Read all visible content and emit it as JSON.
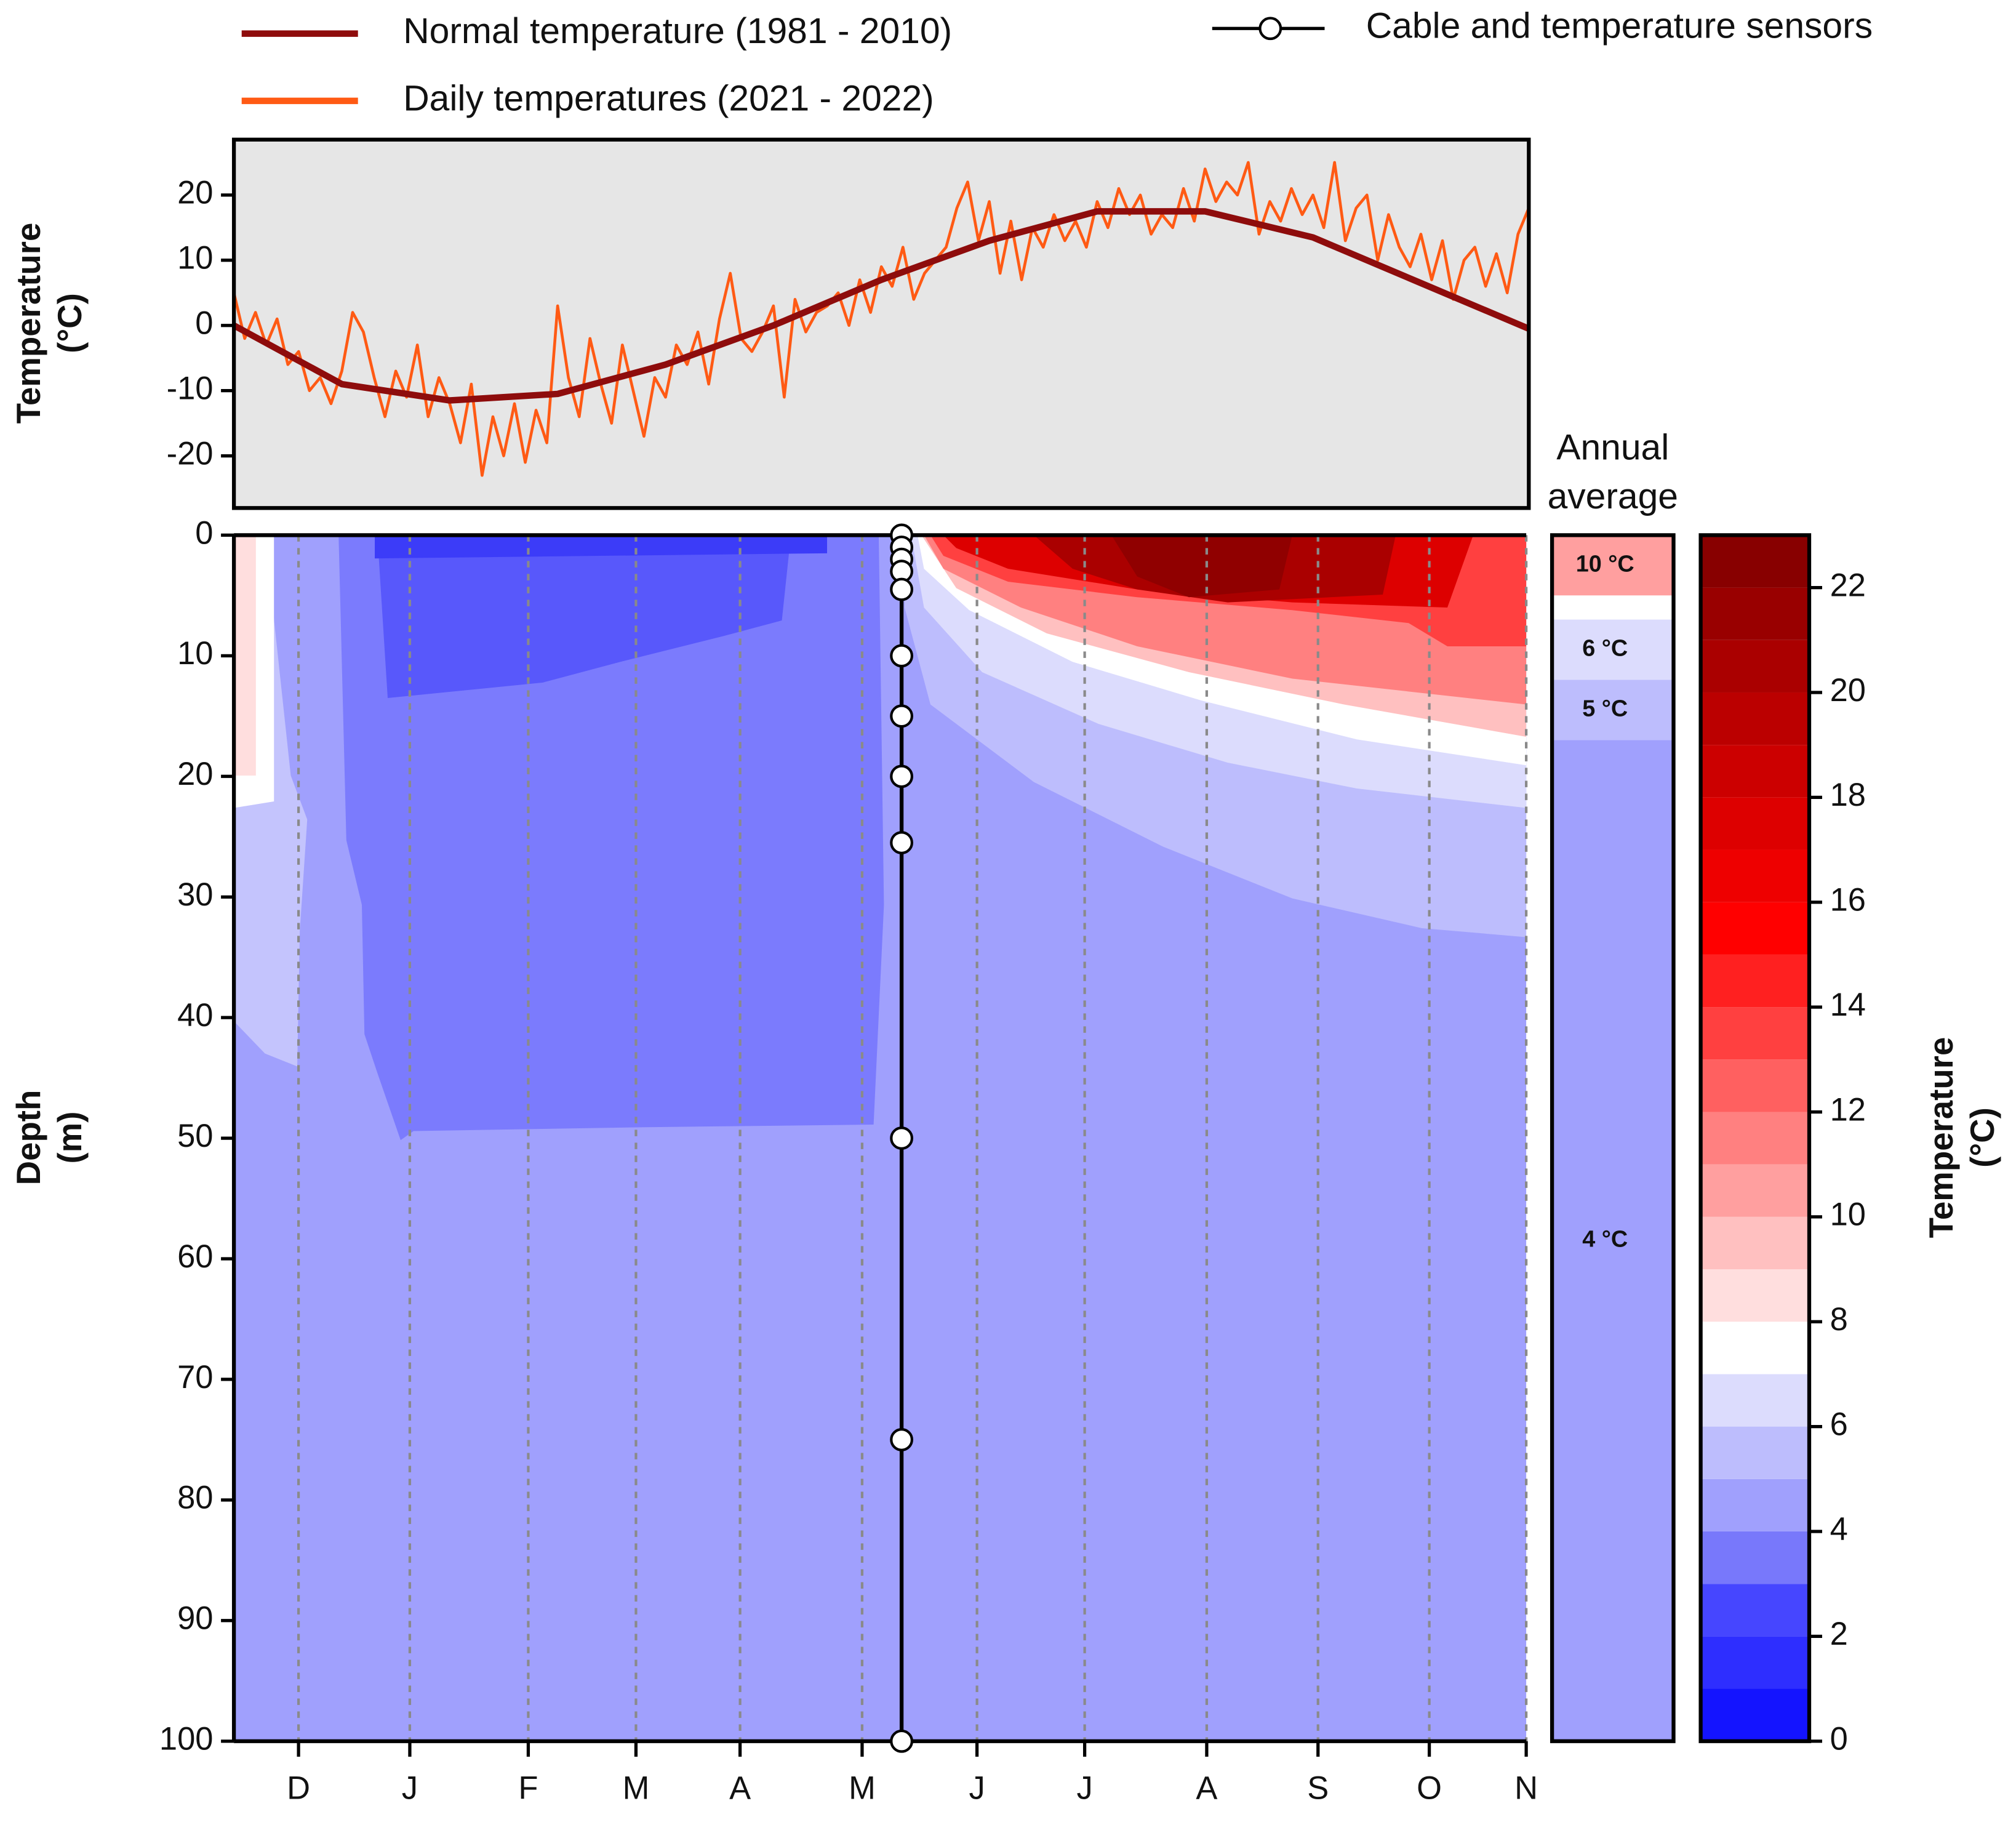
{
  "chart_data": [
    {
      "type": "line",
      "ylabel": [
        "Temperature",
        "(°C)"
      ],
      "xlim": [
        0,
        360
      ],
      "ylim": [
        -28,
        28.5
      ],
      "yticks": [
        -20,
        -10,
        0,
        10,
        20
      ],
      "background": "#e6e6e6",
      "series": [
        {
          "name": "Normal temperature (1981 - 2010)",
          "color": "#8e0c0c",
          "x": [
            0,
            30,
            60,
            90,
            120,
            150,
            180,
            210,
            240,
            270,
            300,
            330,
            360
          ],
          "values": [
            0,
            -9,
            -11.5,
            -10.5,
            -6,
            0,
            7,
            13,
            17.5,
            17.5,
            13.5,
            6.5,
            -0.5
          ]
        },
        {
          "name": "Daily temperatures (2021 - 2022)",
          "color": "#ff5a14",
          "x": [
            0,
            3,
            6,
            9,
            12,
            15,
            18,
            21,
            24,
            27,
            30,
            33,
            36,
            39,
            42,
            45,
            48,
            51,
            54,
            57,
            60,
            63,
            66,
            69,
            72,
            75,
            78,
            81,
            84,
            87,
            90,
            93,
            96,
            99,
            102,
            105,
            108,
            111,
            114,
            117,
            120,
            123,
            126,
            129,
            132,
            135,
            138,
            141,
            144,
            147,
            150,
            153,
            156,
            159,
            162,
            165,
            168,
            171,
            174,
            177,
            180,
            183,
            186,
            189,
            192,
            195,
            198,
            201,
            204,
            207,
            210,
            213,
            216,
            219,
            222,
            225,
            228,
            231,
            234,
            237,
            240,
            243,
            246,
            249,
            252,
            255,
            258,
            261,
            264,
            267,
            270,
            273,
            276,
            279,
            282,
            285,
            288,
            291,
            294,
            297,
            300,
            303,
            306,
            309,
            312,
            315,
            318,
            321,
            324,
            327,
            330,
            333,
            336,
            339,
            342,
            345,
            348,
            351,
            354,
            357,
            360
          ],
          "values": [
            5,
            -2,
            2,
            -3,
            1,
            -6,
            -4,
            -10,
            -8,
            -12,
            -7,
            2,
            -1,
            -8,
            -14,
            -7,
            -11,
            -3,
            -14,
            -8,
            -12,
            -18,
            -9,
            -23,
            -14,
            -20,
            -12,
            -21,
            -13,
            -18,
            3,
            -8,
            -14,
            -2,
            -9,
            -15,
            -3,
            -10,
            -17,
            -8,
            -11,
            -3,
            -6,
            -1,
            -9,
            1,
            8,
            -2,
            -4,
            -1,
            3,
            -11,
            4,
            -1,
            2,
            3,
            5,
            0,
            7,
            2,
            9,
            6,
            12,
            4,
            8,
            10,
            12,
            18,
            22,
            13,
            19,
            8,
            16,
            7,
            15,
            12,
            17,
            13,
            16,
            12,
            19,
            15,
            21,
            17,
            20,
            14,
            17,
            15,
            21,
            16,
            24,
            19,
            22,
            20,
            25,
            14,
            19,
            16,
            21,
            17,
            20,
            15,
            25,
            13,
            18,
            20,
            10,
            17,
            12,
            9,
            14,
            7,
            13,
            4,
            10,
            12,
            6,
            11,
            5,
            14,
            18
          ]
        }
      ]
    },
    {
      "type": "contour",
      "ylabel": [
        "Depth",
        "(m)"
      ],
      "xlim": [
        0,
        360
      ],
      "xticks": [
        {
          "value": 18,
          "label": "D"
        },
        {
          "value": 49,
          "label": "J"
        },
        {
          "value": 82,
          "label": "F"
        },
        {
          "value": 112,
          "label": "M"
        },
        {
          "value": 141,
          "label": "A"
        },
        {
          "value": 175,
          "label": "M"
        },
        {
          "value": 207,
          "label": "J"
        },
        {
          "value": 237,
          "label": "J"
        },
        {
          "value": 271,
          "label": "A"
        },
        {
          "value": 302,
          "label": "S"
        },
        {
          "value": 333,
          "label": "O"
        },
        {
          "value": 360,
          "label": "N"
        }
      ],
      "ylim": [
        0,
        100
      ],
      "yticks": [
        0,
        10,
        20,
        30,
        40,
        50,
        60,
        70,
        80,
        90,
        100
      ],
      "grid": true,
      "sensors": {
        "name": "Cable and temperature sensors",
        "x": 186,
        "depths": [
          0,
          1,
          2,
          3,
          4.5,
          10,
          15,
          20,
          25.5,
          50,
          75,
          100
        ]
      }
    },
    {
      "type": "bands",
      "title": [
        "Annual",
        "average"
      ],
      "ylim": [
        0,
        100
      ],
      "bands": [
        {
          "top": 0,
          "bottom": 5,
          "value": 10,
          "label": "10 °C"
        },
        {
          "top": 5,
          "bottom": 7,
          "value": 7.5
        },
        {
          "top": 7,
          "bottom": 12,
          "value": 6,
          "label": "6 °C"
        },
        {
          "top": 12,
          "bottom": 17,
          "value": 5,
          "label": "5 °C"
        },
        {
          "top": 17,
          "bottom": 100,
          "value": 4,
          "label": "4 °C"
        }
      ]
    },
    {
      "type": "colorbar",
      "label": [
        "Temperature",
        "(°C)"
      ],
      "ylim": [
        0,
        23
      ],
      "yticks": [
        0,
        2,
        4,
        6,
        8,
        10,
        12,
        14,
        16,
        18,
        20,
        22
      ],
      "levels": [
        0,
        1,
        2,
        3,
        4,
        5,
        6,
        7,
        8,
        9,
        10,
        11,
        12,
        13,
        14,
        15,
        16,
        17,
        18,
        19,
        20,
        21,
        22,
        23
      ],
      "colors": [
        "#1414ff",
        "#2e2eff",
        "#4646ff",
        "#7878fb",
        "#a0a0fd",
        "#bdbdfd",
        "#dcdcfd",
        "#ffffff",
        "#ffdede",
        "#ffc0c0",
        "#ff9f9f",
        "#ff8080",
        "#ff6060",
        "#ff4040",
        "#ff2020",
        "#ff0000",
        "#ee0000",
        "#dd0000",
        "#cc0000",
        "#bb0000",
        "#aa0000",
        "#990000",
        "#880000"
      ]
    }
  ]
}
